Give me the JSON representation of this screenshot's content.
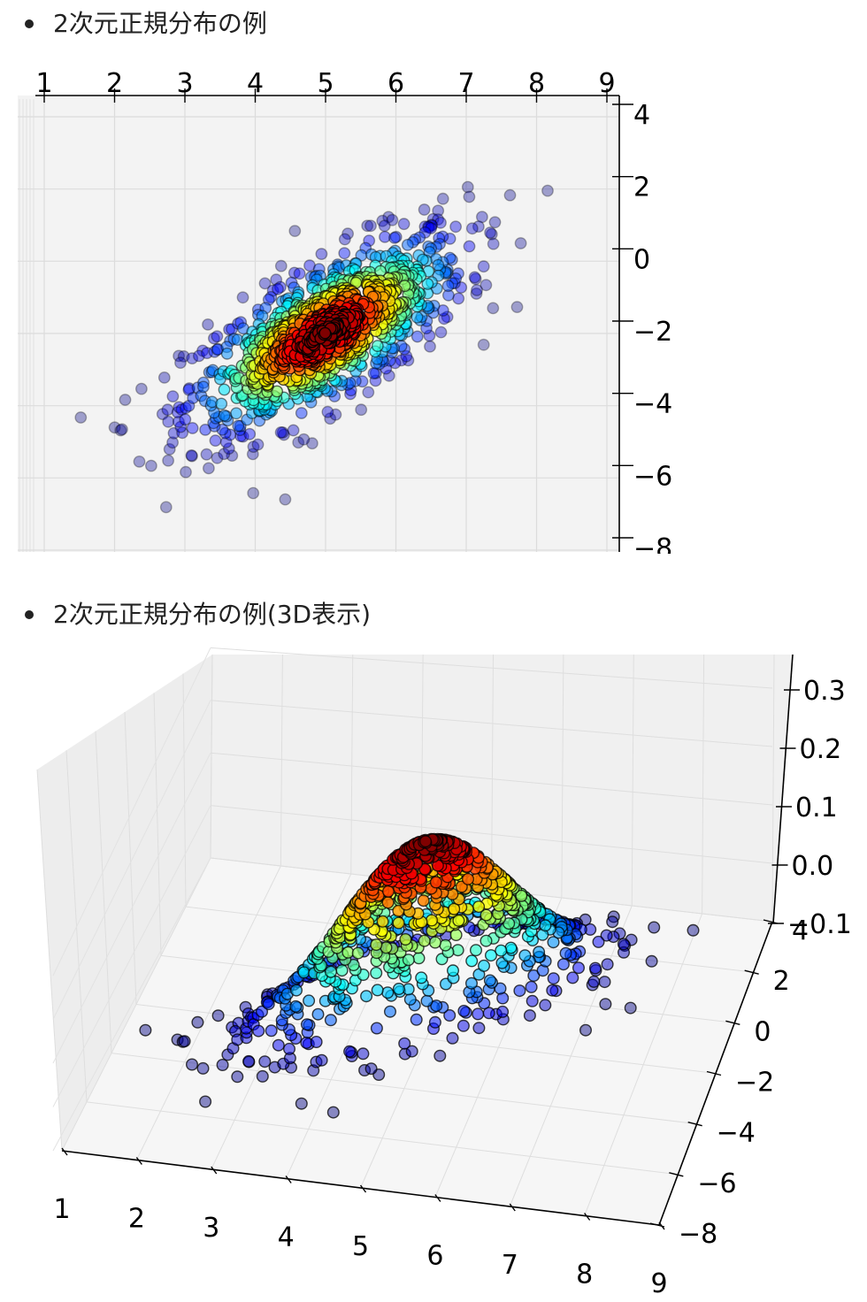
{
  "bullets": [
    {
      "label": "2次元正規分布の例"
    },
    {
      "label": "2次元正規分布の例(3D表示)"
    }
  ],
  "colors": {
    "jet_low": "#00007f",
    "jet_mid": "#7fff7f",
    "jet_high": "#7f0000",
    "pane": "#f2f2f2",
    "grid": "#d8d8d8"
  },
  "chart_data": [
    {
      "type": "scatter",
      "projection": "3d-top-view",
      "x_ticks": [
        "1",
        "2",
        "3",
        "4",
        "5",
        "6",
        "7",
        "8",
        "9"
      ],
      "y_ticks": [
        "4",
        "2",
        "0",
        "−2",
        "−4",
        "−6",
        "−8"
      ],
      "xlim": [
        1,
        9
      ],
      "ylim": [
        -8,
        4
      ],
      "distribution": {
        "mean": [
          5,
          -2
        ],
        "cov": [
          [
            1,
            1
          ],
          [
            1,
            2
          ]
        ]
      },
      "color_by": "density",
      "colormap": "jet",
      "grid": true
    },
    {
      "type": "scatter",
      "projection": "3d",
      "x_ticks": [
        "1",
        "2",
        "3",
        "4",
        "5",
        "6",
        "7",
        "8",
        "9"
      ],
      "y_ticks": [
        "4",
        "2",
        "0",
        "−2",
        "−4",
        "−6",
        "−8"
      ],
      "z_ticks": [
        "0.3",
        "0.2",
        "0.1",
        "0.0",
        "−0.1"
      ],
      "xlim": [
        1,
        9
      ],
      "ylim": [
        -8,
        4
      ],
      "zlim": [
        -0.1,
        0.3
      ],
      "distribution": {
        "mean": [
          5,
          -2
        ],
        "cov": [
          [
            1,
            1
          ],
          [
            1,
            2
          ]
        ]
      },
      "z": "probability density",
      "colormap": "jet",
      "grid": true
    }
  ]
}
